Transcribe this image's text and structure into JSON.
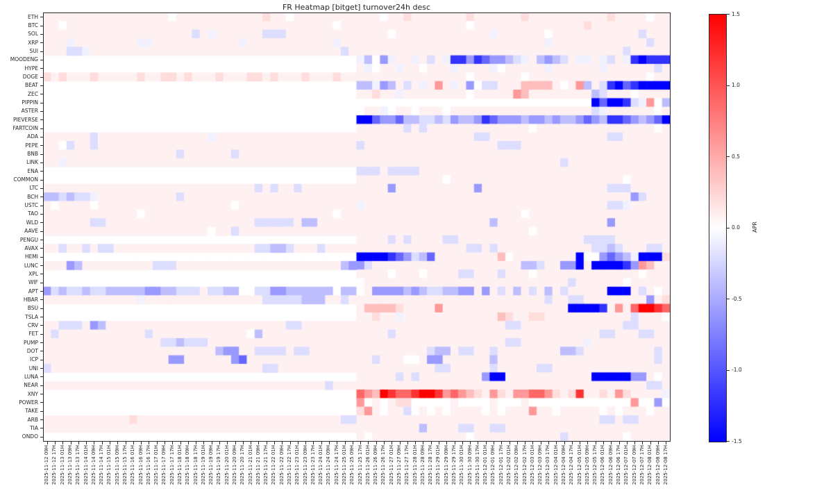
{
  "title": "FR Heatmap [bitget] turnover24h desc",
  "colorbar": {
    "label": "APR",
    "ticks": [
      "1.5",
      "1.0",
      "0.5",
      "0.0",
      "-0.5",
      "-1.0",
      "-1.5"
    ],
    "vmin": -1.5,
    "vmax": 1.5,
    "colormap": "bwr",
    "top_color": "#ff0000",
    "mid_color": "#ffffff",
    "bottom_color": "#0000ff"
  },
  "chart_data": {
    "type": "heatmap",
    "title": "FR Heatmap [bitget] turnover24h desc",
    "value_label": "APR",
    "vmin": -1.5,
    "vmax": 1.5,
    "legend_position": "right-colorbar",
    "grid": false,
    "x_labels": [
      "2025-11-12 09H",
      "2025-11-12 17H",
      "2025-11-13 01H",
      "2025-11-13 09H",
      "2025-11-13 17H",
      "2025-11-14 01H",
      "2025-11-14 09H",
      "2025-11-14 17H",
      "2025-11-15 01H",
      "2025-11-15 09H",
      "2025-11-15 17H",
      "2025-11-16 01H",
      "2025-11-16 09H",
      "2025-11-16 17H",
      "2025-11-17 01H",
      "2025-11-17 09H",
      "2025-11-17 17H",
      "2025-11-18 01H",
      "2025-11-18 09H",
      "2025-11-18 17H",
      "2025-11-19 01H",
      "2025-11-19 09H",
      "2025-11-19 17H",
      "2025-11-20 01H",
      "2025-11-20 09H",
      "2025-11-20 17H",
      "2025-11-21 01H",
      "2025-11-21 09H",
      "2025-11-21 17H",
      "2025-11-22 01H",
      "2025-11-22 09H",
      "2025-11-22 17H",
      "2025-11-23 01H",
      "2025-11-23 09H",
      "2025-11-23 17H",
      "2025-11-24 01H",
      "2025-11-24 09H",
      "2025-11-24 17H",
      "2025-11-25 01H",
      "2025-11-25 09H",
      "2025-11-25 17H",
      "2025-11-26 01H",
      "2025-11-26 09H",
      "2025-11-26 17H",
      "2025-11-27 01H",
      "2025-11-27 09H",
      "2025-11-27 17H",
      "2025-11-28 01H",
      "2025-11-28 09H",
      "2025-11-28 17H",
      "2025-11-29 01H",
      "2025-11-29 09H",
      "2025-11-29 17H",
      "2025-11-30 01H",
      "2025-11-30 09H",
      "2025-11-30 17H",
      "2025-12-01 01H",
      "2025-12-01 09H",
      "2025-12-01 17H",
      "2025-12-02 01H",
      "2025-12-02 09H",
      "2025-12-02 17H",
      "2025-12-03 01H",
      "2025-12-03 09H",
      "2025-12-03 17H",
      "2025-12-04 01H",
      "2025-12-04 09H",
      "2025-12-04 17H",
      "2025-12-05 01H",
      "2025-12-05 09H",
      "2025-12-05 17H",
      "2025-12-06 01H",
      "2025-12-06 09H",
      "2025-12-06 17H",
      "2025-12-07 01H",
      "2025-12-07 09H",
      "2025-12-07 17H",
      "2025-12-08 01H",
      "2025-12-08 09H",
      "2025-12-08 17H"
    ],
    "value_encoding": {
      ".": null,
      "0": 0.0,
      "a": 0.08,
      "b": 0.2,
      "c": 0.38,
      "d": 0.6,
      "e": 0.9,
      "f": 1.2,
      "g": 1.5,
      "A": -0.08,
      "B": -0.2,
      "C": -0.38,
      "D": -0.6,
      "E": -0.9,
      "F": -1.2,
      "G": -1.5
    },
    "rows": [
      {
        "name": "ETH",
        "cells": [
          "aaaaaaaaaa",
          "aaaaaa0aaa",
          "aaaaaaaaba",
          "a0aaaaaaaa",
          "aaa0aabaaa",
          "aaaabaaaaa",
          "abaaaaaaaa",
          "aabaaaa0aa"
        ]
      },
      {
        "name": "BTC",
        "cells": [
          "aa0aaaaaaa",
          "aaaaaaaaaa",
          "aaaaaaaaaa",
          "aaaaaaa0aa",
          "aaaaaaaaaa",
          "aaaa0aaaaa",
          "aaaaaaaaab",
          "aaaaaaaaaa"
        ]
      },
      {
        "name": "SOL",
        "cells": [
          "aaaaaaaaaa",
          "aaaaaaaaaB",
          "aAaaaaaaBB",
          "Baaaaaaaaa",
          "aaaa0aaaaa",
          "aaaaaaaAaa",
          "aaaa0aaaaa",
          "aaaaaaBaaa"
        ]
      },
      {
        "name": "XRP",
        "cells": [
          "aaaAaaaaaa",
          "aaAAaaaaaa",
          "aaaaaAaaaa",
          "aaaaaaaAaa",
          "aaaaaaaaaa",
          "aaaaaaaaaa",
          "aaaaAaaaaa",
          "aaaaaaaBaa"
        ]
      },
      {
        "name": "SUI",
        "cells": [
          "aaaBBAaaaa",
          "aaaaaaaaaa",
          "aaaaaaaaaa",
          "aaaaaaaaBa",
          "aaaaaaaaaa",
          "aaaaaaaaaa",
          "aaaaaaaaaa",
          "aaaaBaaaaa"
        ]
      },
      {
        "name": "MOODENG",
        "cells": [
          "..........",
          "..........",
          "..........",
          "..........",
          "AC0DAaaAaB",
          "aAFFDFEDDC",
          "BAaCDCBaAA",
          "aABaAFGFFF"
        ]
      },
      {
        "name": "HYPE",
        "cells": [
          "..........",
          "..........",
          "..........",
          "..........",
          "aA0aaAaa0a",
          "aaAaaaaA0a",
          "aaaaAaaaaa",
          "aAaaaaaaBa"
        ]
      },
      {
        "name": "DOGE",
        "cells": [
          "babaaabaaa",
          "aabaabbaba",
          "aabaaabbab",
          "aaabaaabaa",
          "aaaaaaaaaa",
          "aaaa0aaaaa",
          "a0aaaaaaaa",
          "aaaaaaa0aa"
        ]
      },
      {
        "name": "BEAT",
        "cells": [
          "..........",
          "..........",
          "..........",
          "..........",
          "CCADCaBaAa",
          "daAaD0BBaa",
          "acccca0adC",
          "aBFGEFGGGG"
        ]
      },
      {
        "name": "ZEC",
        "cells": [
          "..........",
          "..........",
          "..........",
          "..........",
          "aabaaAaaaa",
          "aaaa0aaaaa",
          "dcaaaaaaaa",
          "CBaaa0aaaa"
        ]
      },
      {
        "name": "PIPPIN",
        "cells": [
          "..........",
          "..........",
          "..........",
          "..........",
          "..........",
          "..........",
          "..........",
          "GEGGFBAd0C"
        ]
      },
      {
        "name": "ASTER",
        "cells": [
          "..........",
          "..........",
          "..........",
          "..........",
          "0aaA0aa0aa",
          "a0aaaaaaaa",
          "aaaaaaaaaa",
          "BAaaaaaa0a"
        ]
      },
      {
        "name": "PIEVERSE",
        "cells": [
          "..........",
          "..........",
          "..........",
          "..........",
          "GGEDDECCBB",
          "CBDCCDFEDD",
          "DCDDCDCCDE",
          "DCFFEDCDEG"
        ]
      },
      {
        "name": "FARTCOIN",
        "cells": [
          "..........",
          "..........",
          "..........",
          "..........",
          "aaaaaaBaBa",
          "aaaaaaaaaa",
          "aa0aaaaaaa",
          "aaaaaaaa0a"
        ]
      },
      {
        "name": "ADA",
        "cells": [
          "aaaaaaBaaa",
          "aaaaaaaaaa",
          "aAaaaaaaaa",
          "aaaaaaaaaa",
          "aaaaaaaaaa",
          "aaaaaBBaaa",
          "aaaaaaaaaa",
          "aaBBaaaaaa"
        ]
      },
      {
        "name": "PEPE",
        "cells": [
          "aa0BaaBaaa",
          "aaaaaaaaaa",
          "aaaaaaaaaa",
          "aaaaaaaaaa",
          "Baaaaaaaaa",
          "aaaaaaaaBB",
          "Baaaaaaaaa",
          "aaaaaaaaaa"
        ]
      },
      {
        "name": "BNB",
        "cells": [
          "aaaaaaaaaa",
          "aaaaaaaBaa",
          "aaaaBaaaaa",
          "aaaaaaaaaa",
          "aaaaaaaaaa",
          "aaaaaaaaaa",
          "aaaaaaaaaa",
          "aaaaaaaaaa"
        ]
      },
      {
        "name": "LINK",
        "cells": [
          "aaAaaaaaaa",
          "aaaaaaaaaa",
          "aaaaaaaaaa",
          "aaaaaaaaaa",
          "aaaaaaaaaa",
          "aaaaaaaaaa",
          "aaaaaaBaaa",
          "aaaaaaaaaa"
        ]
      },
      {
        "name": "ENA",
        "cells": [
          "..........",
          "..........",
          "..........",
          "..........",
          "BBBaBBBBaa",
          "aaaaaaaaaa",
          "aaaaaaaaaa",
          "aaaaaaaaaa"
        ]
      },
      {
        "name": "COMMON",
        "cells": [
          "..........",
          "..........",
          "..........",
          "..........",
          "aaaaaaaaaa",
          "a0aaaaaaaa",
          "aaaaaaaaaa",
          "aaaa0aaaaa"
        ]
      },
      {
        "name": "LTC",
        "cells": [
          "aaaaaaaaaa",
          "aaaaaaaaaa",
          "aaaaaaaBaB",
          "aaBaaaaaaa",
          "aaaaDaaaaa",
          "aaaaaDaaaa",
          "aaaaaaaaaa",
          "aaBBBaaaaa"
        ]
      },
      {
        "name": "BCH",
        "cells": [
          "CCBCBBAaaa",
          "aaaaaaaBaa",
          "aaaaaaaaaa",
          "aaaaaaaaaa",
          "aaaaaaaaaa",
          "aaaaaaaaaa",
          "aaaaaaaaaa",
          "aaaaaDBaaa"
        ]
      },
      {
        "name": "USTC",
        "cells": [
          "a0aaaa0aaa",
          "aaaaaaaaaa",
          "aaaa0aaaaa",
          "aaaaaaaaaa",
          "Aaaaaaaaaa",
          "aaaaaaaaaa",
          "aaaaaaaaaa",
          "aaBBAaaaaa"
        ]
      },
      {
        "name": "TAO",
        "cells": [
          "aaaaaaaaaa",
          "aa0aaaaaaa",
          "aaaaaaaaaa",
          "aaaaaaa0aa",
          "aaaaaaaaaa",
          "aaaaaaaaaa",
          "a0aaaaaaaa",
          "aaaaaaaaaa"
        ]
      },
      {
        "name": "WLD",
        "cells": [
          "aaaaaaBBaa",
          "aaaaaaaaaa",
          "aaaaaaaBBB",
          "BBaCCaaaaa",
          "aaaaaaaaaa",
          "aaaaaaaCaa",
          "aaaaaaaaaa",
          "aaDaaaaaaa"
        ]
      },
      {
        "name": "AAVE",
        "cells": [
          "aaaaaaaaaa",
          "aaaaaaaaaa",
          "a0aaBaaaaa",
          "aaaaaaaaaa",
          "aaaaaaaaaa",
          "aaaaaaaaaa",
          "aa0aaaaaaa",
          "aaaaaaaaaa"
        ]
      },
      {
        "name": "PENGU",
        "cells": [
          "..........",
          "..........",
          "..........",
          "..........",
          "aaaaBaBaaa",
          "aBBaaaaaaa",
          "aaaaaaaaaB",
          "BBBaaaaaaa"
        ]
      },
      {
        "name": "AVAX",
        "cells": [
          "aaBaaBaBBa",
          "aaaaaaaaaa",
          "aaaaaaaBBC",
          "CBaaaBaaaa",
          "aaaaaaaaaa",
          "aaaaBBaBaa",
          "aaaaaaaaaa",
          "BBCBaaaBBa"
        ]
      },
      {
        "name": "HEMI",
        "cells": [
          "..........",
          "..........",
          "..........",
          "..........",
          "GGGGFEDBCE",
          "aaaaaaaac0",
          "aaaaaaaaG0",
          "0DEDCAGGGb"
        ]
      },
      {
        "name": "LUNC",
        "cells": [
          "aaaDCaaaaa",
          "aaaaBBBaaa",
          "aaaaaaaaaa",
          "aaaaaaaaCD",
          "DBaaaaaaaa",
          "aaaaaaaaaa",
          "aCCBaaDDGa",
          "GGGGFDdcaa"
        ]
      },
      {
        "name": "XPL",
        "cells": [
          "..........",
          "..........",
          "..........",
          "..........",
          "aaaa0aaa0a",
          "aaaBBaaaBa",
          "aa0aaaaaaa",
          "aaaaaa0aaa"
        ]
      },
      {
        "name": "WIF",
        "cells": [
          "..........",
          "..........",
          "..........",
          "..........",
          "0aaaaaaaaa",
          "aaaaaaaaaa",
          "aaaaaaaBaa",
          "aaaa0aaaaa"
        ]
      },
      {
        "name": "APT",
        "cells": [
          "DBCBBCBBCC",
          "CCCDDCCBBB",
          "aBBCC00BBD",
          "DCCCCCC0CC",
          "0aDDDDCDCB",
          "BCCDDaDaBa",
          "CaBaCaBaaa",
          "aaGGGaBa0a"
        ]
      },
      {
        "name": "HBAR",
        "cells": [
          "aaaaaaaaaa",
          "aaAaaaaaaa",
          "aaaaaaaaBB",
          "BBBCCCaaBa",
          "aaaaaaaaaa",
          "aaaaaaaaaa",
          "aaaaBaaBBa",
          "aaaaaaaDab"
        ]
      },
      {
        "name": "BSU",
        "cells": [
          "..........",
          "..........",
          "..........",
          "..........",
          "accccbaaaa",
          "daaaaaaaaa",
          "aaaaaaaGGG",
          "GFadaeggfe"
        ]
      },
      {
        "name": "TSLA",
        "cells": [
          "..........",
          "..........",
          "..........",
          "..........",
          "aabaaAaaaa",
          "aaaaaaaacb",
          "aabbaaaaaa",
          "aaaaaBaaa0"
        ]
      },
      {
        "name": "CRV",
        "cells": [
          "aaBBBaDCaa",
          "aaaaaaaaaa",
          "aaaaaaaaaa",
          "aBBaaaaaaa",
          "aaaaaaaaaa",
          "aaaaaaaaaB",
          "Baaaaaaaaa",
          "aaaaBBaaaa"
        ]
      },
      {
        "name": "FET",
        "cells": [
          "aBaaaaaaaa",
          "aaaBaaaaaa",
          "aaaaaa0Caa",
          "aaaaaaaaaa",
          "aaaaBaaaaa",
          "aaaaaaaaaa",
          "aaaaaaaaaa",
          "aBBaaaBBaa"
        ]
      },
      {
        "name": "PUMP",
        "cells": [
          "aaaaaaaaaa",
          "aaaaaBBCBB",
          "Baaaaaaaaa",
          "aaaaaaaaaa",
          "aaaaaaaaaa",
          "aaaaaaaaaB",
          "BaaaaaaaaA",
          "aaaaaaaaaa"
        ]
      },
      {
        "name": "DOT",
        "cells": [
          "aaaaaaaaaa",
          "aaaaaaaaaa",
          "aaCDDaaBBB",
          "BaBBaaaaaa",
          "aaaaaaaaaB",
          "CCaBBaaBaa",
          "aaaaaaCCBa",
          "aaaaaaaaBa"
        ]
      },
      {
        "name": "ICP",
        "cells": [
          "aaaaaaaaaa",
          "aaaaaaDDaa",
          "aaaaDEaaaa",
          "aaaaaaaaaa",
          "aaBaaa00aD",
          "DaaaaaaCaa",
          "aaaaaaaaaa",
          "aaaaaaaaBa"
        ]
      },
      {
        "name": "UNI",
        "cells": [
          "Baaaaaaaaa",
          "aaaaaaaaaa",
          "aaaaaaaaBB",
          "aaaaaaaaaa",
          "aaaaaaaaaa",
          "BBaaaaaBaa",
          "aaaBBaaaaa",
          "aaaaaaaaaa"
        ]
      },
      {
        "name": "LUNA",
        "cells": [
          "..........",
          "..........",
          "..........",
          "..........",
          "aaaaaBaBaa",
          "aaaaaaDGGa",
          "aaaaaaaaaa",
          "GGGGGDDa0a"
        ]
      },
      {
        "name": "NEAR",
        "cells": [
          "aaaaaaaaaa",
          "aaaaaaaaaa",
          "aaaaaaaaaa",
          "aaaaaaBaaa",
          "aaaaaaaaaa",
          "aaaaaaaaaa",
          "aaaaaaaaaa",
          "aaaaaaaBBa"
        ]
      },
      {
        "name": "XNY",
        "cells": [
          "..........",
          "..........",
          "..........",
          "..........",
          "edcgfeefgg",
          "fdedcbadba",
          "ddeedbabfa",
          "abadbaaaaA"
        ]
      },
      {
        "name": "POWER",
        "cells": [
          "..........",
          "..........",
          "..........",
          "..........",
          "d0a0abb000",
          "00a0000a00",
          "0a00000000",
          "00000d00D0"
        ]
      },
      {
        "name": "TAKE",
        "cells": [
          "..........",
          "..........",
          "..........",
          "..........",
          "bda0aaB0a0",
          "a0aaaa0a0a",
          "aadaa0aaaa",
          "a0a0aaa0aa"
        ]
      },
      {
        "name": "ARB",
        "cells": [
          "aaaaaaaaaa",
          "abaaaaaaaa",
          "aaaaaaaaaa",
          "aaaaaaaaBB",
          "aaaaaaaaaa",
          "aaaaaaaaaa",
          "aaaaaaaaaa",
          "aBBaBBaaaa"
        ]
      },
      {
        "name": "TIA",
        "cells": [
          "aaaaaaaaaa",
          "aaaaaaaaaa",
          "aaaaaaaaaa",
          "aaaaaaaaaa",
          "aaaaaaaaCa",
          "aaaBBaaBBa",
          "aaaaaaaaaa",
          "aaaaaaaaaa"
        ]
      },
      {
        "name": "ONDO",
        "cells": [
          "..........",
          "..........",
          "..........",
          "..........",
          "a0aaaaaaaa",
          "aaaa0aaaaa",
          "aaaaaaBaaa",
          "aaaa0aaaaa"
        ]
      }
    ]
  }
}
